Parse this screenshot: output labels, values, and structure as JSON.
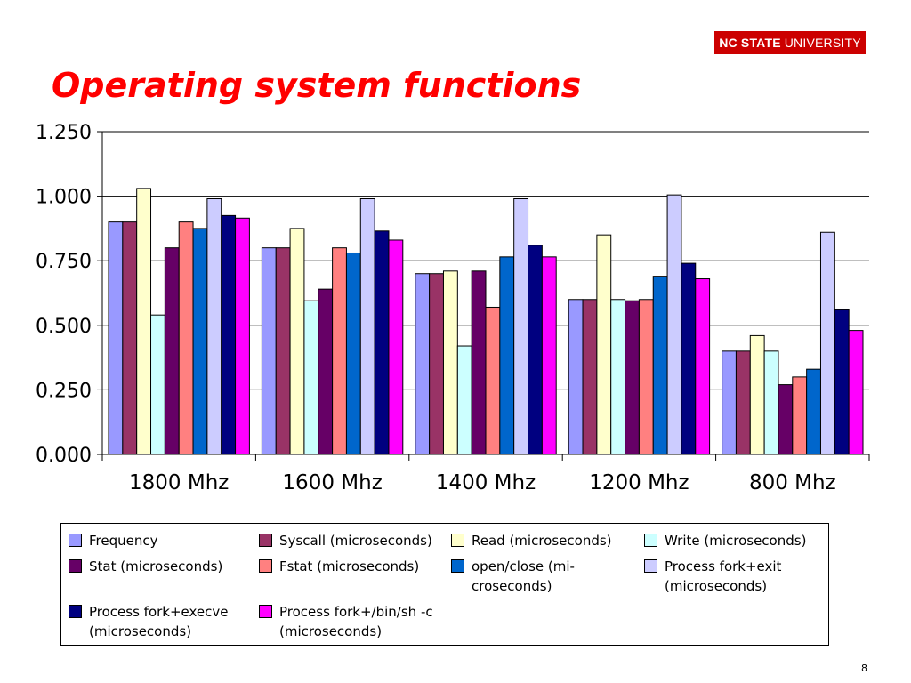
{
  "logo": {
    "bold": "NC STATE",
    "rest": "UNIVERSITY"
  },
  "slide": {
    "title": "Operating system functions",
    "page_number": "8"
  },
  "chart_data": {
    "type": "bar",
    "categories": [
      "1800 Mhz",
      "1600 Mhz",
      "1400 Mhz",
      "1200 Mhz",
      "800 Mhz"
    ],
    "ylim": [
      0,
      1.25
    ],
    "yticks": [
      0,
      0.25,
      0.5,
      0.75,
      1,
      1.25
    ],
    "ytick_labels": [
      "0.000",
      "0.250",
      "0.500",
      "0.750",
      "1.000",
      "1.250"
    ],
    "grid": true,
    "legend_position": "bottom",
    "series": [
      {
        "name": "Frequency",
        "color": "#9999ff",
        "values": [
          0.9,
          0.8,
          0.7,
          0.6,
          0.4
        ]
      },
      {
        "name": "Syscall (microseconds)",
        "color": "#993366",
        "values": [
          0.9,
          0.8,
          0.7,
          0.6,
          0.4
        ]
      },
      {
        "name": "Read (microseconds)",
        "color": "#ffffcc",
        "values": [
          1.03,
          0.875,
          0.71,
          0.85,
          0.46
        ]
      },
      {
        "name": "Write (microseconds)",
        "color": "#ccffff",
        "values": [
          0.54,
          0.595,
          0.42,
          0.6,
          0.4
        ]
      },
      {
        "name": "Stat (microseconds)",
        "color": "#660066",
        "values": [
          0.8,
          0.64,
          0.71,
          0.595,
          0.27
        ]
      },
      {
        "name": "Fstat (microseconds)",
        "color": "#ff8080",
        "values": [
          0.9,
          0.8,
          0.57,
          0.6,
          0.3
        ]
      },
      {
        "name": "open/close (mi-\ncroseconds)",
        "color": "#0066cc",
        "values": [
          0.875,
          0.78,
          0.765,
          0.69,
          0.33
        ]
      },
      {
        "name": "Process fork+exit\n(microseconds)",
        "color": "#ccccff",
        "values": [
          0.99,
          0.99,
          0.99,
          1.005,
          0.86
        ]
      },
      {
        "name": "Process fork+execve\n(microseconds)",
        "color": "#000080",
        "values": [
          0.925,
          0.865,
          0.81,
          0.74,
          0.56
        ]
      },
      {
        "name": "Process fork+/bin/sh -c\n(microseconds)",
        "color": "#ff00ff",
        "values": [
          0.915,
          0.83,
          0.765,
          0.68,
          0.48
        ]
      }
    ]
  }
}
